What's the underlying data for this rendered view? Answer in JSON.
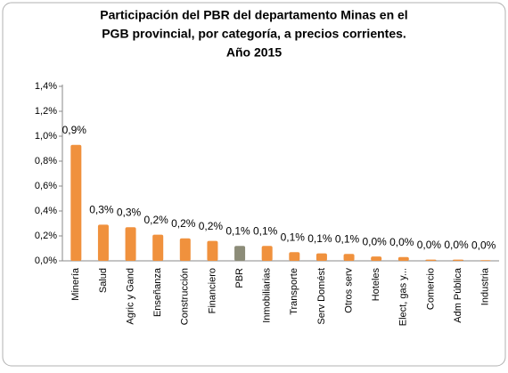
{
  "chart_data": {
    "type": "bar",
    "title": [
      "Participación del PBR del departamento Minas en el",
      "PGB provincial, por categoría, a precios corrientes.",
      "Año 2015"
    ],
    "categories": [
      "Minería",
      "Salud",
      "Agric y Gand",
      "Enseñanza",
      "Construcción",
      "Financiero",
      "PBR",
      "Inmobiliarias",
      "Transporte",
      "Serv Domést",
      "Otros serv",
      "Hoteles",
      "Elect, gas y...",
      "Comercio",
      "Adm Pública",
      "Industria"
    ],
    "values": [
      0.93,
      0.29,
      0.27,
      0.21,
      0.18,
      0.16,
      0.12,
      0.12,
      0.07,
      0.06,
      0.055,
      0.035,
      0.03,
      0.01,
      0.01,
      0.005
    ],
    "value_labels": [
      "0,9%",
      "0,3%",
      "0,3%",
      "0,2%",
      "0,2%",
      "0,2%",
      "0,1%",
      "0,1%",
      "0,1%",
      "0,1%",
      "0,1%",
      "0,0%",
      "0,0%",
      "0,0%",
      "0,0%",
      "0,0%"
    ],
    "colors": [
      "#f0913d",
      "#f0913d",
      "#f0913d",
      "#f0913d",
      "#f0913d",
      "#f0913d",
      "#8c8c78",
      "#f0913d",
      "#f0913d",
      "#f0913d",
      "#f0913d",
      "#f0913d",
      "#f0913d",
      "#f0913d",
      "#f0913d",
      "#f0913d"
    ],
    "ylim": [
      0,
      1.4
    ],
    "yticks": [
      {
        "value": 0,
        "label": "0,0%"
      },
      {
        "value": 0.2,
        "label": "0,2%"
      },
      {
        "value": 0.4,
        "label": "0,4%"
      },
      {
        "value": 0.6,
        "label": "0,6%"
      },
      {
        "value": 0.8,
        "label": "0,8%"
      },
      {
        "value": 1.0,
        "label": "1,0%"
      },
      {
        "value": 1.2,
        "label": "1,2%"
      },
      {
        "value": 1.4,
        "label": "1,4%"
      }
    ],
    "grid": false
  }
}
